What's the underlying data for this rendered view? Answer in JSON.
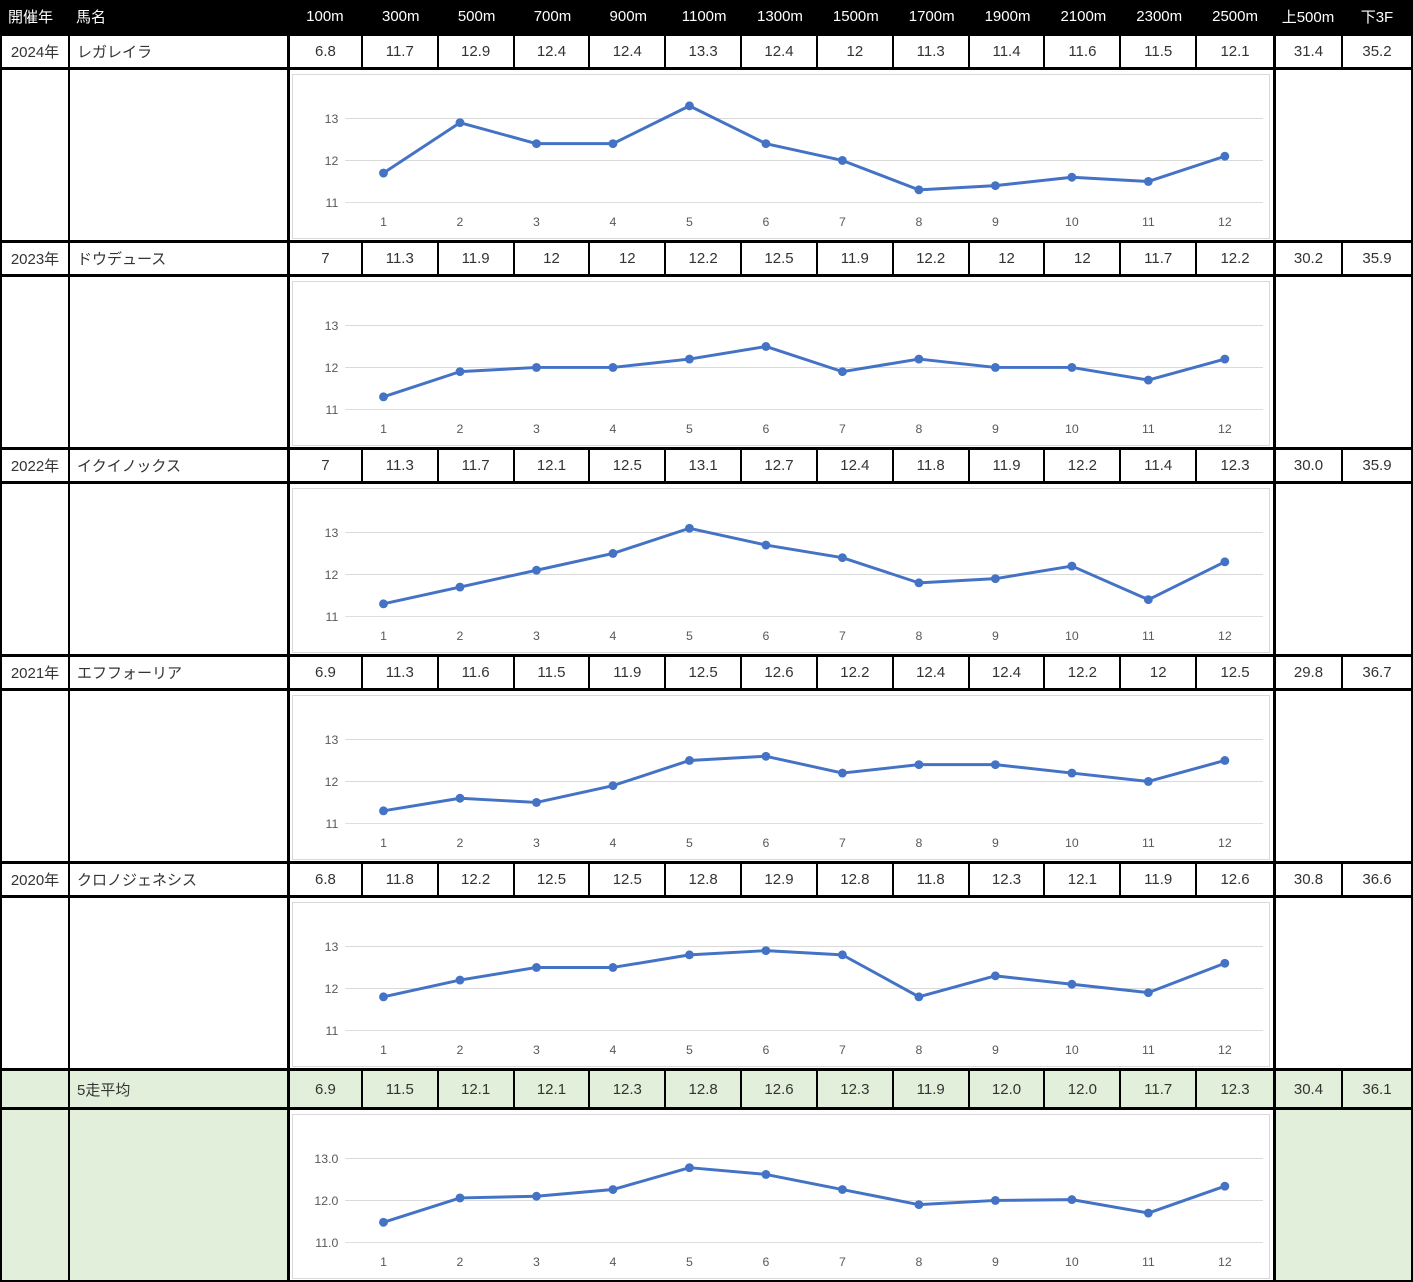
{
  "colors": {
    "header_bg": "#000000",
    "header_text": "#ffffff",
    "body_text": "#333333",
    "avg_row_bg": "#e2efda",
    "border": "#000000",
    "chart_line": "#4472c4",
    "chart_grid": "#d9d9d9",
    "chart_tick_text": "#595959"
  },
  "header": {
    "columns": [
      "開催年",
      "馬名",
      "100m",
      "300m",
      "500m",
      "700m",
      "900m",
      "1100m",
      "1300m",
      "1500m",
      "1700m",
      "1900m",
      "2100m",
      "2300m",
      "2500m",
      "上500m",
      "下3F"
    ]
  },
  "rows": [
    {
      "year": "2024年",
      "horse": "レガレイラ",
      "values": [
        "6.8",
        "11.7",
        "12.9",
        "12.4",
        "12.4",
        "13.3",
        "12.4",
        "12",
        "11.3",
        "11.4",
        "11.6",
        "11.5",
        "12.1"
      ],
      "up500": "31.4",
      "down3f": "35.2"
    },
    {
      "year": "2023年",
      "horse": "ドウデュース",
      "values": [
        "7",
        "11.3",
        "11.9",
        "12",
        "12",
        "12.2",
        "12.5",
        "11.9",
        "12.2",
        "12",
        "12",
        "11.7",
        "12.2"
      ],
      "up500": "30.2",
      "down3f": "35.9"
    },
    {
      "year": "2022年",
      "horse": "イクイノックス",
      "values": [
        "7",
        "11.3",
        "11.7",
        "12.1",
        "12.5",
        "13.1",
        "12.7",
        "12.4",
        "11.8",
        "11.9",
        "12.2",
        "11.4",
        "12.3"
      ],
      "up500": "30.0",
      "down3f": "35.9"
    },
    {
      "year": "2021年",
      "horse": "エフフォーリア",
      "values": [
        "6.9",
        "11.3",
        "11.6",
        "11.5",
        "11.9",
        "12.5",
        "12.6",
        "12.2",
        "12.4",
        "12.4",
        "12.2",
        "12",
        "12.5"
      ],
      "up500": "29.8",
      "down3f": "36.7"
    },
    {
      "year": "2020年",
      "horse": "クロノジェネシス",
      "values": [
        "6.8",
        "11.8",
        "12.2",
        "12.5",
        "12.5",
        "12.8",
        "12.9",
        "12.8",
        "11.8",
        "12.3",
        "12.1",
        "11.9",
        "12.6"
      ],
      "up500": "30.8",
      "down3f": "36.6"
    }
  ],
  "average_row": {
    "label": "5走平均",
    "values": [
      "6.9",
      "11.5",
      "12.1",
      "12.1",
      "12.3",
      "12.8",
      "12.6",
      "12.3",
      "11.9",
      "12.0",
      "12.0",
      "11.7",
      "12.3"
    ],
    "up500": "30.4",
    "down3f": "36.1"
  },
  "chart_data": [
    {
      "type": "line",
      "x": [
        1,
        2,
        3,
        4,
        5,
        6,
        7,
        8,
        9,
        10,
        11,
        12
      ],
      "values": [
        11.7,
        12.9,
        12.4,
        12.4,
        13.3,
        12.4,
        12,
        11.3,
        11.4,
        11.6,
        11.5,
        12.1
      ],
      "yticks": [
        11,
        12,
        13
      ],
      "ytick_labels": [
        "11",
        "12",
        "13"
      ],
      "ylim": [
        10.7,
        13.6
      ],
      "grid": true,
      "legend": false
    },
    {
      "type": "line",
      "x": [
        1,
        2,
        3,
        4,
        5,
        6,
        7,
        8,
        9,
        10,
        11,
        12
      ],
      "values": [
        11.3,
        11.9,
        12,
        12,
        12.2,
        12.5,
        11.9,
        12.2,
        12,
        12,
        11.7,
        12.2
      ],
      "yticks": [
        11,
        12,
        13
      ],
      "ytick_labels": [
        "11",
        "12",
        "13"
      ],
      "ylim": [
        10.7,
        13.6
      ],
      "grid": true,
      "legend": false
    },
    {
      "type": "line",
      "x": [
        1,
        2,
        3,
        4,
        5,
        6,
        7,
        8,
        9,
        10,
        11,
        12
      ],
      "values": [
        11.3,
        11.7,
        12.1,
        12.5,
        13.1,
        12.7,
        12.4,
        11.8,
        11.9,
        12.2,
        11.4,
        12.3
      ],
      "yticks": [
        11,
        12,
        13
      ],
      "ytick_labels": [
        "11",
        "12",
        "13"
      ],
      "ylim": [
        10.7,
        13.6
      ],
      "grid": true,
      "legend": false
    },
    {
      "type": "line",
      "x": [
        1,
        2,
        3,
        4,
        5,
        6,
        7,
        8,
        9,
        10,
        11,
        12
      ],
      "values": [
        11.3,
        11.6,
        11.5,
        11.9,
        12.5,
        12.6,
        12.2,
        12.4,
        12.4,
        12.2,
        12,
        12.5
      ],
      "yticks": [
        11,
        12,
        13
      ],
      "ytick_labels": [
        "11",
        "12",
        "13"
      ],
      "ylim": [
        10.7,
        13.6
      ],
      "grid": true,
      "legend": false
    },
    {
      "type": "line",
      "x": [
        1,
        2,
        3,
        4,
        5,
        6,
        7,
        8,
        9,
        10,
        11,
        12
      ],
      "values": [
        11.8,
        12.2,
        12.5,
        12.5,
        12.8,
        12.9,
        12.8,
        11.8,
        12.3,
        12.1,
        11.9,
        12.6
      ],
      "yticks": [
        11,
        12,
        13
      ],
      "ytick_labels": [
        "11",
        "12",
        "13"
      ],
      "ylim": [
        10.7,
        13.6
      ],
      "grid": true,
      "legend": false
    },
    {
      "type": "line",
      "x": [
        1,
        2,
        3,
        4,
        5,
        6,
        7,
        8,
        9,
        10,
        11,
        12
      ],
      "values": [
        11.48,
        12.06,
        12.1,
        12.26,
        12.78,
        12.62,
        12.26,
        11.9,
        12.0,
        12.02,
        11.7,
        12.34
      ],
      "yticks": [
        11,
        12,
        13
      ],
      "ytick_labels": [
        "11.0",
        "12.0",
        "13.0"
      ],
      "ylim": [
        10.7,
        13.6
      ],
      "grid": true,
      "legend": false
    }
  ]
}
